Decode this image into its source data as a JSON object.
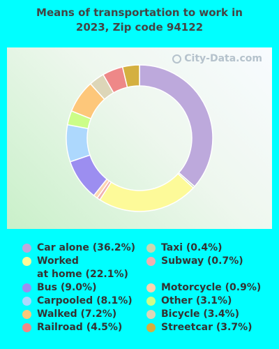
{
  "chart_data": {
    "type": "pie",
    "title": "Means of transportation to work in\n2023, Zip code 94122",
    "watermark": "City-Data.com",
    "slices": [
      {
        "label": "Car alone",
        "value": 36.2,
        "display": "Car alone (36.2%)",
        "color": "#bda9dc"
      },
      {
        "label": "Taxi",
        "value": 0.4,
        "display": "Taxi (0.4%)",
        "color": "#c8d8b0"
      },
      {
        "label": "Worked at home",
        "value": 22.1,
        "display": "Worked\nat home (22.1%)",
        "color": "#fdfa99"
      },
      {
        "label": "Subway",
        "value": 0.7,
        "display": "Subway (0.7%)",
        "color": "#f0b0b0"
      },
      {
        "label": "Bus",
        "value": 9.0,
        "display": "Bus (9.0%)",
        "color": "#9c8ef0"
      },
      {
        "label": "Motorcycle",
        "value": 0.9,
        "display": "Motorcycle (0.9%)",
        "color": "#fdd5b0"
      },
      {
        "label": "Carpooled",
        "value": 8.1,
        "display": "Carpooled (8.1%)",
        "color": "#add8fd"
      },
      {
        "label": "Other",
        "value": 3.1,
        "display": "Other (3.1%)",
        "color": "#ccfd88"
      },
      {
        "label": "Walked",
        "value": 7.2,
        "display": "Walked (7.2%)",
        "color": "#fdc77a"
      },
      {
        "label": "Bicycle",
        "value": 3.4,
        "display": "Bicycle (3.4%)",
        "color": "#ddd6b8"
      },
      {
        "label": "Railroad",
        "value": 4.5,
        "display": "Railroad (4.5%)",
        "color": "#ee8888"
      },
      {
        "label": "Streetcar",
        "value": 3.7,
        "display": "Streetcar (3.7%)",
        "color": "#d4b040"
      }
    ]
  }
}
